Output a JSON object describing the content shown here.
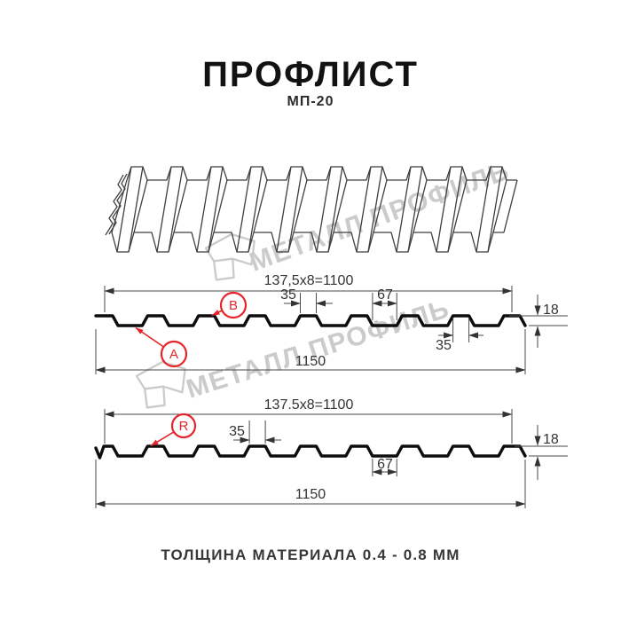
{
  "header": {
    "title": "ПРОФЛИСТ",
    "subtitle": "МП-20"
  },
  "watermark": {
    "text": "МЕТАЛЛ ПРОФИЛЬ"
  },
  "colors": {
    "accent_red": "#e62429",
    "line_dark": "#0d0d0d",
    "dim_line": "#4a4a4a",
    "watermark_gray": "#cbcbcb"
  },
  "profile_top": {
    "pitch_label": "137,5x8=1100",
    "crest_top_label": "35",
    "valley_label": "67",
    "height_label": "18",
    "crest_bottom_label": "35",
    "total_width_label": "1150",
    "callout_a": "А",
    "callout_b": "В"
  },
  "profile_bottom": {
    "pitch_label": "137.5x8=1100",
    "crest_top_label": "35",
    "valley_label": "67",
    "height_label": "18",
    "total_width_label": "1150",
    "callout_r": "R"
  },
  "footer": {
    "material_note": "ТОЛЩИНА МАТЕРИАЛА 0.4 - 0.8 ММ"
  }
}
